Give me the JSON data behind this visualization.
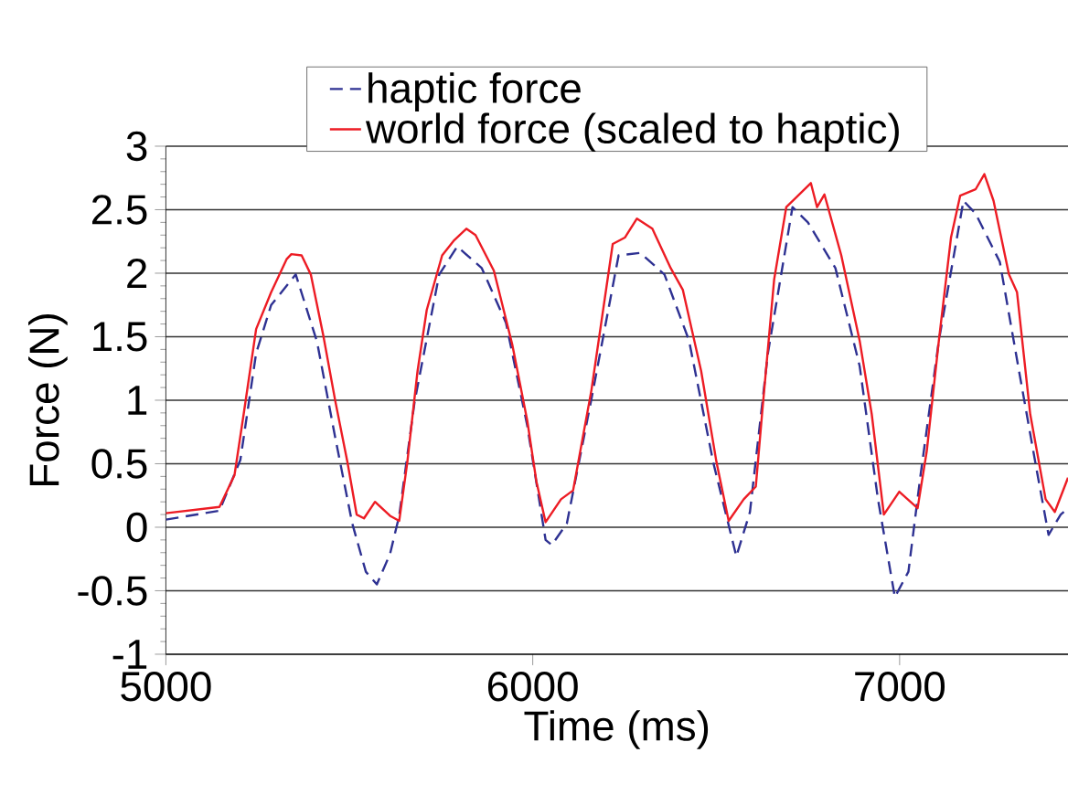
{
  "chart_data": {
    "type": "line",
    "xlabel": "Time (ms)",
    "ylabel": "Force (N)",
    "xlim": [
      5000,
      7459
    ],
    "xticks": [
      5000,
      6000,
      7000
    ],
    "ylim": [
      -1,
      3
    ],
    "yticks": [
      -1,
      -0.5,
      0,
      0.5,
      1,
      1.5,
      2,
      2.5,
      3
    ],
    "grid": "y",
    "legend": "top",
    "marker": "none",
    "series": [
      {
        "name": "haptic force",
        "color": "#2e3192",
        "line_style": "dashed",
        "x": [
          5000,
          5146,
          5203,
          5246,
          5287,
          5354,
          5412,
          5462,
          5508,
          5545,
          5575,
          5611,
          5636,
          5678,
          5745,
          5794,
          5861,
          5927,
          5985,
          6035,
          6052,
          6093,
          6160,
          6234,
          6293,
          6359,
          6426,
          6492,
          6555,
          6592,
          6641,
          6708,
          6750,
          6825,
          6891,
          6941,
          6987,
          7024,
          7057,
          7107,
          7174,
          7207,
          7273,
          7323,
          7373,
          7406,
          7439,
          7459
        ],
        "values": [
          0.06,
          0.13,
          0.53,
          1.37,
          1.75,
          1.99,
          1.46,
          0.7,
          0.03,
          -0.35,
          -0.45,
          -0.21,
          0.09,
          0.99,
          1.99,
          2.21,
          2.04,
          1.61,
          0.8,
          -0.1,
          -0.14,
          0.03,
          1.01,
          2.14,
          2.16,
          1.99,
          1.47,
          0.51,
          -0.23,
          0.12,
          1.37,
          2.52,
          2.4,
          2.04,
          1.27,
          0.22,
          -0.55,
          -0.35,
          0.41,
          1.47,
          2.57,
          2.47,
          2.09,
          1.27,
          0.46,
          -0.06,
          0.1,
          0.15
        ]
      },
      {
        "name": "world force (scaled to haptic)",
        "color": "#ed1c24",
        "line_style": "solid",
        "x": [
          5000,
          5146,
          5187,
          5212,
          5246,
          5287,
          5329,
          5342,
          5370,
          5395,
          5429,
          5462,
          5495,
          5520,
          5540,
          5570,
          5611,
          5636,
          5658,
          5686,
          5711,
          5753,
          5786,
          5819,
          5844,
          5894,
          5944,
          5985,
          6010,
          6035,
          6077,
          6110,
          6160,
          6218,
          6251,
          6284,
          6326,
          6376,
          6409,
          6459,
          6501,
          6534,
          6575,
          6608,
          6625,
          6658,
          6691,
          6716,
          6758,
          6775,
          6795,
          6841,
          6891,
          6924,
          6957,
          6999,
          7049,
          7074,
          7107,
          7140,
          7165,
          7207,
          7231,
          7256,
          7298,
          7320,
          7356,
          7398,
          7423,
          7459
        ],
        "values": [
          0.11,
          0.16,
          0.41,
          0.89,
          1.56,
          1.85,
          2.11,
          2.15,
          2.14,
          1.99,
          1.51,
          0.99,
          0.51,
          0.1,
          0.07,
          0.2,
          0.09,
          0.05,
          0.51,
          1.23,
          1.71,
          2.14,
          2.26,
          2.35,
          2.3,
          2.02,
          1.44,
          0.84,
          0.36,
          0.04,
          0.22,
          0.29,
          1.08,
          2.23,
          2.28,
          2.43,
          2.35,
          2.04,
          1.87,
          1.23,
          0.51,
          0.05,
          0.22,
          0.32,
          0.89,
          1.95,
          2.52,
          2.59,
          2.71,
          2.52,
          2.62,
          2.14,
          1.47,
          0.89,
          0.1,
          0.28,
          0.15,
          0.6,
          1.47,
          2.28,
          2.61,
          2.66,
          2.78,
          2.57,
          1.99,
          1.85,
          0.89,
          0.22,
          0.12,
          0.39
        ]
      }
    ]
  }
}
